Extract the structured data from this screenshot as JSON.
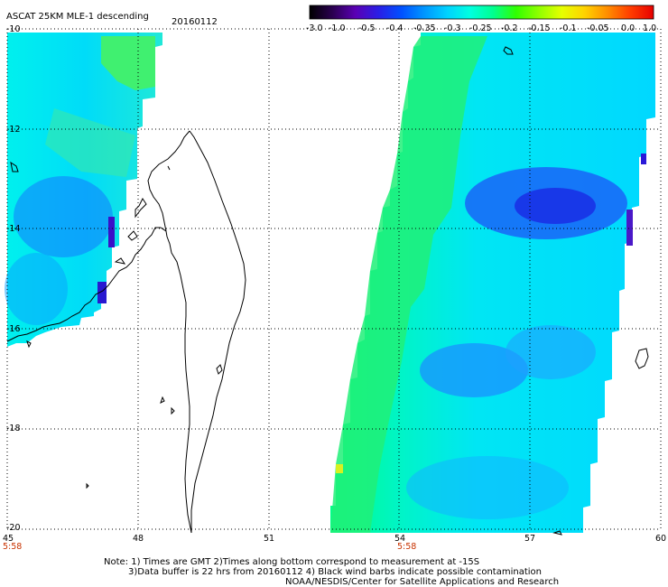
{
  "header": {
    "title": "ASCAT 25KM MLE-1 descending",
    "date": "20160112"
  },
  "colorbar": {
    "ticks": [
      "-3.0",
      "-1.0",
      "-0.5",
      "-0.4",
      "-0.35",
      "-0.3",
      "-0.25",
      "-0.2",
      "-0.15",
      "-0.1",
      "-0.05",
      "0.0",
      "1.0"
    ],
    "stops": [
      "#000000",
      "#2a0050",
      "#5a00b4",
      "#2a1ee6",
      "#0050ff",
      "#0096ff",
      "#00d2ff",
      "#00ffe0",
      "#00ff90",
      "#30ff00",
      "#90ff00",
      "#e6ff00",
      "#ffd200",
      "#ff8c00",
      "#ff3c00",
      "#e60000"
    ]
  },
  "axes": {
    "lat_labels": [
      "-10",
      "-12",
      "-14",
      "-16",
      "-18",
      "-20"
    ],
    "lon_labels": [
      "45",
      "48",
      "51",
      "54",
      "57",
      "60"
    ],
    "time_labels": [
      "5:58",
      "5:58"
    ],
    "time_color": "#c83200"
  },
  "notes": {
    "line1": "Note: 1) Times are GMT 2)Times along bottom correspond to measurement at -15S",
    "line2": "3)Data buffer is 22 hrs from 20160112 4) Black wind barbs indicate possible contamination",
    "line3": "NOAA/NESDIS/Center for Satellite Applications and Research"
  }
}
